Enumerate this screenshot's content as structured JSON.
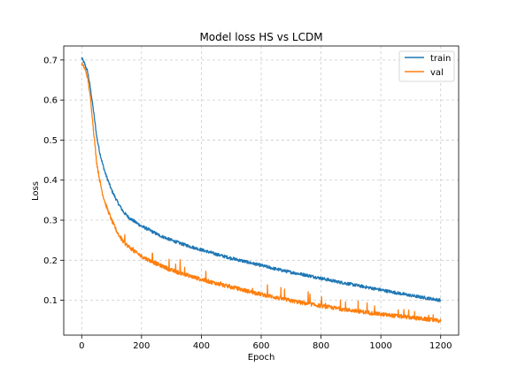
{
  "chart_data": {
    "type": "line",
    "title": "Model loss HS vs LCDM",
    "xlabel": "Epoch",
    "ylabel": "Loss",
    "xlim": [
      -60,
      1260
    ],
    "ylim": [
      0.013,
      0.735
    ],
    "xticks": [
      0,
      200,
      400,
      600,
      800,
      1000,
      1200
    ],
    "yticks": [
      0.1,
      0.2,
      0.3,
      0.4,
      0.5,
      0.6,
      0.7
    ],
    "grid": true,
    "legend_position": "top-right",
    "series": [
      {
        "name": "train",
        "color": "#1f77b4",
        "points": [
          [
            0,
            0.705
          ],
          [
            10,
            0.69
          ],
          [
            20,
            0.67
          ],
          [
            30,
            0.625
          ],
          [
            40,
            0.57
          ],
          [
            50,
            0.51
          ],
          [
            60,
            0.47
          ],
          [
            70,
            0.44
          ],
          [
            80,
            0.415
          ],
          [
            90,
            0.395
          ],
          [
            100,
            0.375
          ],
          [
            120,
            0.345
          ],
          [
            140,
            0.32
          ],
          [
            160,
            0.305
          ],
          [
            180,
            0.295
          ],
          [
            200,
            0.285
          ],
          [
            220,
            0.278
          ],
          [
            240,
            0.27
          ],
          [
            260,
            0.262
          ],
          [
            280,
            0.256
          ],
          [
            300,
            0.25
          ],
          [
            330,
            0.242
          ],
          [
            360,
            0.235
          ],
          [
            400,
            0.226
          ],
          [
            450,
            0.215
          ],
          [
            500,
            0.205
          ],
          [
            550,
            0.196
          ],
          [
            600,
            0.187
          ],
          [
            650,
            0.178
          ],
          [
            700,
            0.17
          ],
          [
            750,
            0.163
          ],
          [
            800,
            0.155
          ],
          [
            850,
            0.147
          ],
          [
            900,
            0.14
          ],
          [
            950,
            0.133
          ],
          [
            1000,
            0.126
          ],
          [
            1050,
            0.119
          ],
          [
            1100,
            0.112
          ],
          [
            1150,
            0.106
          ],
          [
            1200,
            0.1
          ]
        ]
      },
      {
        "name": "val",
        "color": "#ff7f0e",
        "points": [
          [
            0,
            0.69
          ],
          [
            10,
            0.68
          ],
          [
            20,
            0.655
          ],
          [
            30,
            0.6
          ],
          [
            40,
            0.52
          ],
          [
            50,
            0.445
          ],
          [
            60,
            0.4
          ],
          [
            70,
            0.365
          ],
          [
            80,
            0.34
          ],
          [
            90,
            0.32
          ],
          [
            100,
            0.3
          ],
          [
            120,
            0.268
          ],
          [
            140,
            0.245
          ],
          [
            160,
            0.232
          ],
          [
            180,
            0.22
          ],
          [
            200,
            0.21
          ],
          [
            220,
            0.202
          ],
          [
            240,
            0.195
          ],
          [
            260,
            0.188
          ],
          [
            280,
            0.182
          ],
          [
            300,
            0.175
          ],
          [
            330,
            0.168
          ],
          [
            360,
            0.161
          ],
          [
            400,
            0.152
          ],
          [
            450,
            0.142
          ],
          [
            500,
            0.133
          ],
          [
            550,
            0.124
          ],
          [
            600,
            0.115
          ],
          [
            650,
            0.107
          ],
          [
            700,
            0.099
          ],
          [
            750,
            0.092
          ],
          [
            800,
            0.086
          ],
          [
            850,
            0.08
          ],
          [
            900,
            0.075
          ],
          [
            950,
            0.07
          ],
          [
            1000,
            0.065
          ],
          [
            1050,
            0.061
          ],
          [
            1100,
            0.057
          ],
          [
            1150,
            0.053
          ],
          [
            1200,
            0.048
          ]
        ]
      }
    ]
  }
}
